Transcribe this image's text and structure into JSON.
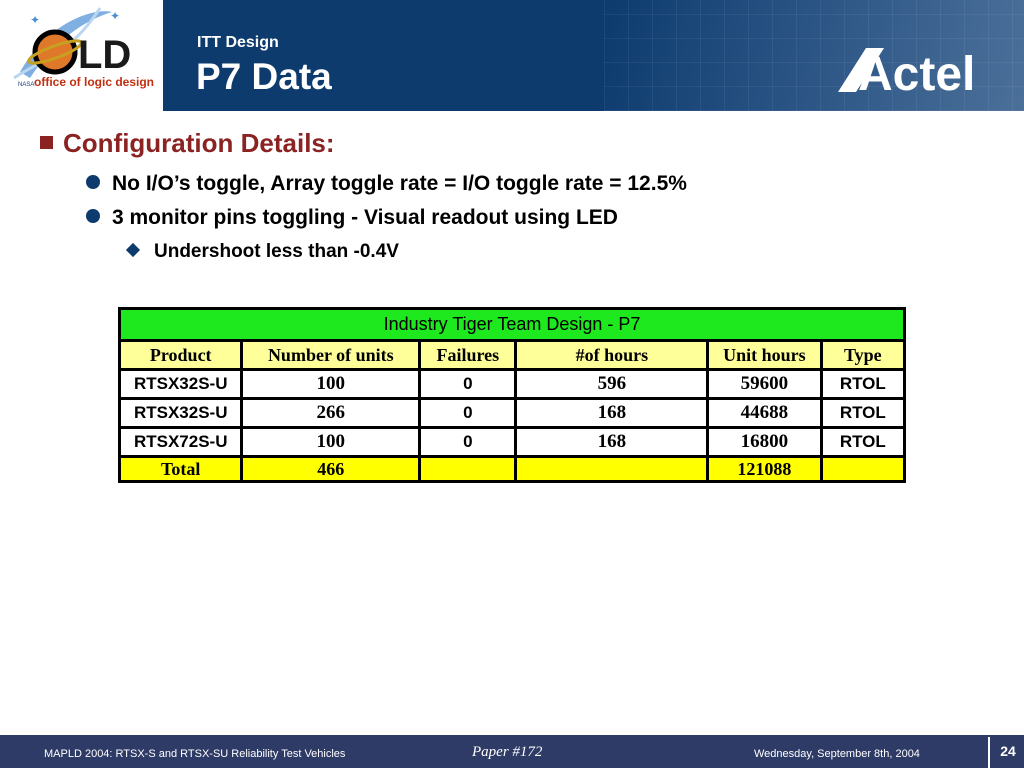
{
  "header": {
    "subtitle": "ITT Design",
    "title": "P7 Data",
    "logo_left_text": "office of logic design",
    "logo_right_text": "Actel"
  },
  "bullets": {
    "heading": "Configuration Details:",
    "items": [
      "No I/O’s toggle, Array toggle rate = I/O toggle rate = 12.5%",
      "3 monitor pins toggling - Visual readout using LED"
    ],
    "sub_item": "Undershoot less than -0.4V"
  },
  "table": {
    "caption": "Industry Tiger Team Design - P7",
    "columns": [
      "Product",
      "Number of units",
      "Failures",
      "#of hours",
      "Unit hours",
      "Type"
    ],
    "rows": [
      [
        "RTSX32S-U",
        "100",
        "0",
        "596",
        "59600",
        "RTOL"
      ],
      [
        "RTSX32S-U",
        "266",
        "0",
        "168",
        "44688",
        "RTOL"
      ],
      [
        "RTSX72S-U",
        "100",
        "0",
        "168",
        "16800",
        "RTOL"
      ]
    ],
    "total": [
      "Total",
      "466",
      "",
      "",
      "121088",
      ""
    ]
  },
  "footer": {
    "left": "MAPLD 2004: RTSX-S and RTSX-SU Reliability Test Vehicles",
    "center": "Paper #172",
    "right": "Wednesday, September 8th, 2004",
    "page": "24"
  },
  "colors": {
    "header_bg": "#0d3b6e",
    "heading_color": "#8b2323",
    "caption_bg": "#1ee81e",
    "header_row_bg": "#ffff99",
    "total_row_bg": "#ffff00",
    "footer_bg": "#2e3b66"
  }
}
